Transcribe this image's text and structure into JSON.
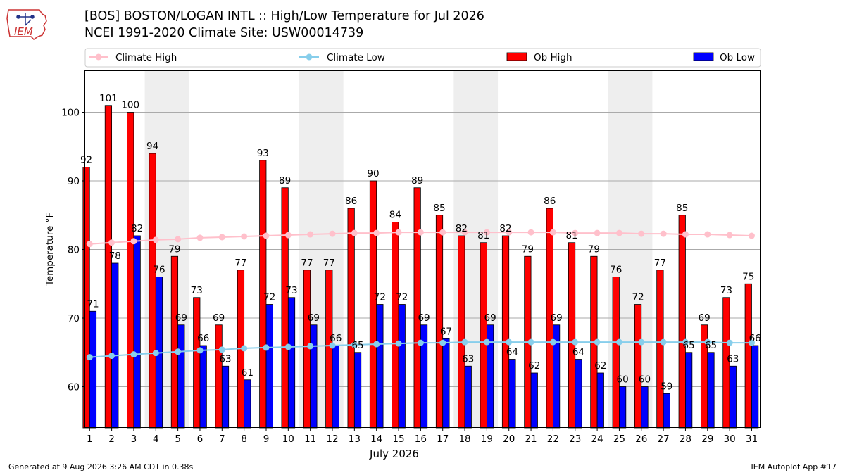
{
  "header": {
    "title_line1": "[BOS] BOSTON/LOGAN INTL :: High/Low Temperature for Jul 2026",
    "title_line2": "NCEI 1991-2020 Climate Site: USW00014739",
    "logo_text": "IEM"
  },
  "footer": {
    "generated": "Generated at 9 Aug 2026 3:26 AM CDT in 0.38s",
    "app": "IEM Autoplot App #17"
  },
  "colors": {
    "ob_high": "#ff0000",
    "ob_low": "#0000ff",
    "climate_high": "#ffc0cb",
    "climate_low": "#87ceeb",
    "weekend_band": "#eeeeee",
    "grid": "#aaaaaa"
  },
  "chart_data": {
    "type": "bar",
    "xlabel": "July 2026",
    "ylabel": "Temperature °F",
    "ylim": [
      54,
      106
    ],
    "yticks": [
      60,
      70,
      80,
      90,
      100
    ],
    "grid": "horizontal",
    "legend_placement": "top",
    "weekend_bands": [
      [
        4,
        5
      ],
      [
        11,
        12
      ],
      [
        18,
        19
      ],
      [
        25,
        26
      ]
    ],
    "categories": [
      1,
      2,
      3,
      4,
      5,
      6,
      7,
      8,
      9,
      10,
      11,
      12,
      13,
      14,
      15,
      16,
      17,
      18,
      19,
      20,
      21,
      22,
      23,
      24,
      25,
      26,
      27,
      28,
      29,
      30,
      31
    ],
    "series": [
      {
        "name": "Ob High",
        "kind": "bar",
        "values": [
          92,
          101,
          100,
          94,
          79,
          73,
          69,
          77,
          93,
          89,
          77,
          77,
          86,
          90,
          84,
          89,
          85,
          82,
          81,
          82,
          79,
          86,
          81,
          79,
          76,
          72,
          77,
          85,
          69,
          73,
          75
        ]
      },
      {
        "name": "Ob Low",
        "kind": "bar",
        "values": [
          71,
          78,
          82,
          76,
          69,
          66,
          63,
          61,
          72,
          73,
          69,
          66,
          65,
          72,
          72,
          69,
          67,
          63,
          69,
          64,
          62,
          69,
          64,
          62,
          60,
          60,
          59,
          65,
          65,
          63,
          66
        ]
      },
      {
        "name": "Climate High",
        "kind": "line",
        "values": [
          80.8,
          81.0,
          81.2,
          81.4,
          81.5,
          81.7,
          81.8,
          81.9,
          82.0,
          82.1,
          82.2,
          82.3,
          82.4,
          82.4,
          82.5,
          82.5,
          82.5,
          82.5,
          82.5,
          82.5,
          82.5,
          82.5,
          82.4,
          82.4,
          82.4,
          82.3,
          82.3,
          82.2,
          82.2,
          82.1,
          82.0
        ]
      },
      {
        "name": "Climate Low",
        "kind": "line",
        "values": [
          64.3,
          64.5,
          64.7,
          64.9,
          65.1,
          65.3,
          65.4,
          65.6,
          65.7,
          65.8,
          65.9,
          66.0,
          66.1,
          66.2,
          66.3,
          66.4,
          66.4,
          66.5,
          66.5,
          66.5,
          66.5,
          66.5,
          66.5,
          66.5,
          66.5,
          66.5,
          66.5,
          66.5,
          66.5,
          66.4,
          66.4
        ]
      }
    ]
  }
}
